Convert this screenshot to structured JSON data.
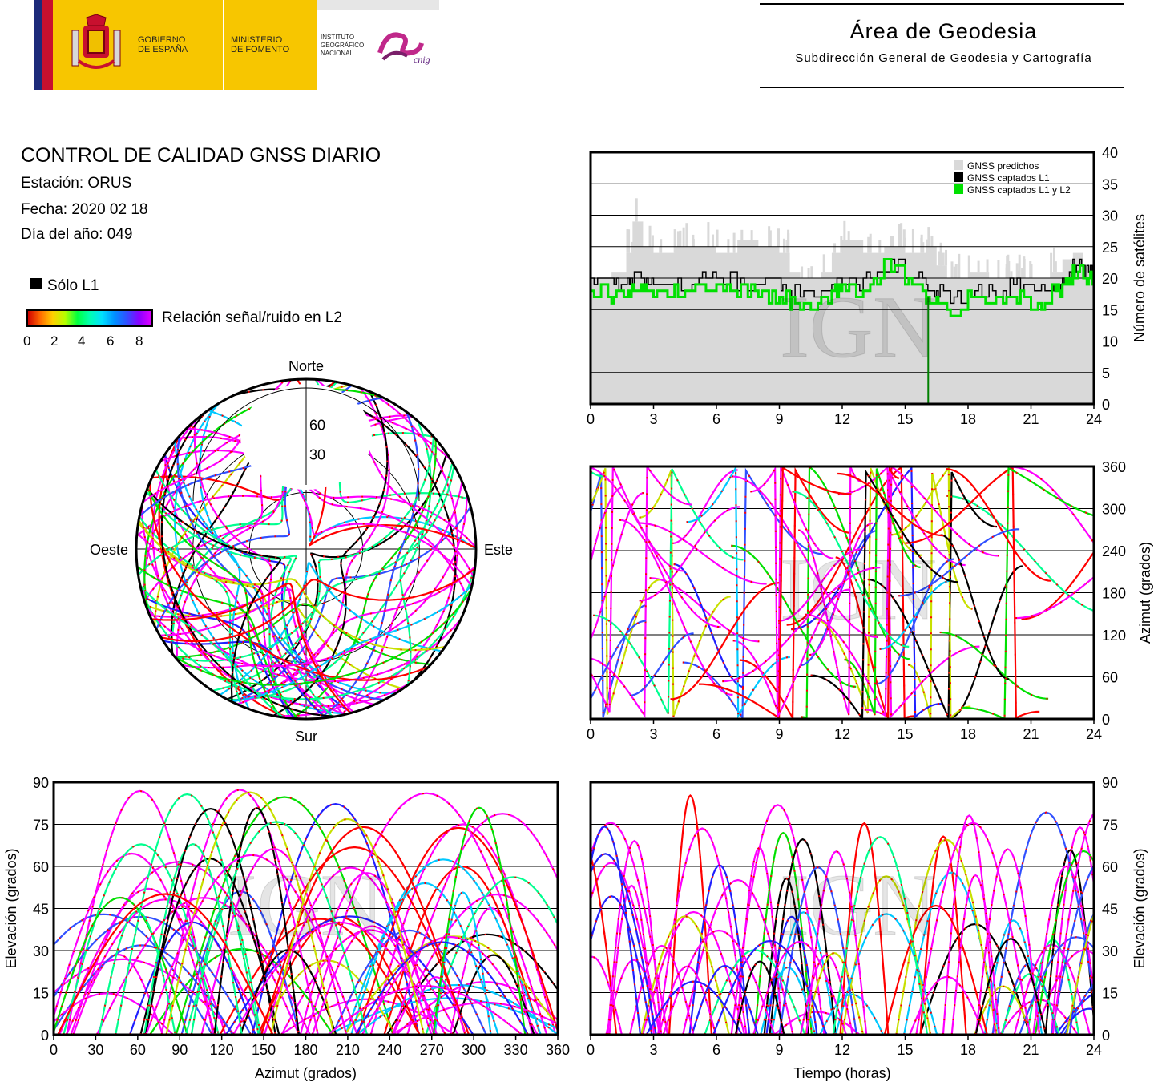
{
  "header": {
    "gov_line1": "GOBIERNO",
    "gov_line2": "DE ESPAÑA",
    "min_line1": "MINISTERIO",
    "min_line2": "DE FOMENTO",
    "inst_line1": "INSTITUTO",
    "inst_line2": "GEOGRÁFICO",
    "inst_line3": "NACIONAL",
    "cnig": "cnig",
    "area_title": "Área de Geodesia",
    "area_subtitle": "Subdirección General de Geodesia y Cartografía"
  },
  "info": {
    "title": "CONTROL DE CALIDAD GNSS DIARIO",
    "station": "Estación: ORUS",
    "date": "Fecha: 2020 02 18",
    "doy": "Día del año: 049"
  },
  "legend": {
    "l1_only": "Sólo L1",
    "snr_label": "Relación señal/ruido en L2",
    "snr_ticks": [
      "0",
      "2",
      "4",
      "6",
      "8"
    ]
  },
  "watermark": "IGN",
  "colors": {
    "predicted": "#d9d9d9",
    "l1": "#000000",
    "l1l2": "#00e000",
    "traces": [
      "#ff00ff",
      "#ff00ff",
      "#ff00ff",
      "#2020ff",
      "#00c8ff",
      "#00ff90",
      "#00e000",
      "#c8e000",
      "#ff0000",
      "#000000",
      "#ff00ff",
      "#3050ff"
    ]
  },
  "chart_data": [
    {
      "type": "area",
      "id": "satellite-count",
      "ylabel": "Número de satélites",
      "xlim": [
        0,
        24
      ],
      "ylim": [
        0,
        40
      ],
      "xticks": [
        0,
        3,
        6,
        9,
        12,
        15,
        18,
        21,
        24
      ],
      "yticks": [
        0,
        5,
        10,
        15,
        20,
        25,
        30,
        35,
        40
      ],
      "grid": "horizontal",
      "legend_placement": "top-right",
      "series": [
        {
          "name": "GNSS predichos",
          "x": [
            0,
            1,
            1.7,
            2,
            2.5,
            3,
            4,
            5,
            6,
            7,
            8,
            9,
            9.5,
            10,
            11,
            11.5,
            12,
            13,
            14,
            15,
            16,
            16.5,
            17,
            18,
            19,
            20,
            21,
            22,
            22.5,
            23,
            23.5,
            24
          ],
          "values": [
            20,
            21,
            24,
            29,
            25,
            24,
            25,
            25,
            24,
            26,
            25,
            24,
            21,
            20,
            21,
            24,
            26,
            24,
            25,
            24,
            25,
            22,
            20,
            21,
            20,
            20,
            20,
            21,
            23,
            24,
            22,
            20
          ]
        },
        {
          "name": "GNSS captados L1",
          "x": [
            0,
            1,
            1.7,
            2,
            2.5,
            3,
            4,
            5,
            6,
            7,
            8,
            9,
            9.5,
            10,
            11,
            11.5,
            12,
            13,
            14,
            15,
            16,
            16.5,
            17,
            18,
            19,
            20,
            21,
            22,
            22.5,
            23,
            23.5,
            24
          ],
          "values": [
            20,
            19,
            20,
            20,
            19,
            20,
            19,
            20,
            20,
            19,
            20,
            19,
            18,
            17,
            18,
            19,
            19,
            20,
            22,
            20,
            18,
            18,
            17,
            18,
            18,
            19,
            18,
            19,
            20,
            22,
            21,
            19
          ]
        },
        {
          "name": "GNSS captados L1 y L2",
          "x": [
            0,
            1,
            1.7,
            2,
            2.5,
            3,
            4,
            5,
            6,
            7,
            8,
            9,
            9.5,
            10,
            11,
            11.5,
            12,
            13,
            14,
            15,
            16,
            16.5,
            17,
            18,
            19,
            20,
            21,
            22,
            22.5,
            23,
            23.5,
            24
          ],
          "values": [
            18,
            17,
            18,
            19,
            18,
            17,
            18,
            19,
            19,
            18,
            17,
            17,
            16,
            15,
            16,
            18,
            18,
            19,
            22,
            19,
            16,
            16,
            15,
            17,
            17,
            17,
            16,
            18,
            19,
            21,
            20,
            17
          ]
        }
      ]
    },
    {
      "type": "scatter",
      "id": "sky-plot",
      "title": "",
      "direction_labels": {
        "north": "Norte",
        "south": "Sur",
        "east": "Este",
        "west": "Oeste"
      },
      "elevation_rings": [
        "30",
        "60"
      ]
    },
    {
      "type": "scatter",
      "id": "azimuth-vs-time",
      "ylabel": "Azimut (grados)",
      "xlim": [
        0,
        24
      ],
      "ylim": [
        0,
        360
      ],
      "xticks": [
        0,
        3,
        6,
        9,
        12,
        15,
        18,
        21,
        24
      ],
      "yticks": [
        0,
        60,
        120,
        180,
        240,
        300,
        360
      ],
      "grid": "horizontal"
    },
    {
      "type": "scatter",
      "id": "elevation-vs-azimuth",
      "xlabel": "Azimut (grados)",
      "ylabel": "Elevación (grados)",
      "xlim": [
        0,
        360
      ],
      "ylim": [
        0,
        90
      ],
      "xticks": [
        0,
        30,
        60,
        90,
        120,
        150,
        180,
        210,
        240,
        270,
        300,
        330,
        360
      ],
      "yticks": [
        0,
        15,
        30,
        45,
        60,
        75,
        90
      ],
      "grid": "horizontal"
    },
    {
      "type": "scatter",
      "id": "elevation-vs-time",
      "xlabel": "Tiempo (horas)",
      "ylabel": "Elevación (grados)",
      "xlim": [
        0,
        24
      ],
      "ylim": [
        0,
        90
      ],
      "xticks": [
        0,
        3,
        6,
        9,
        12,
        15,
        18,
        21,
        24
      ],
      "yticks": [
        0,
        15,
        30,
        45,
        60,
        75,
        90
      ],
      "grid": "horizontal"
    }
  ]
}
